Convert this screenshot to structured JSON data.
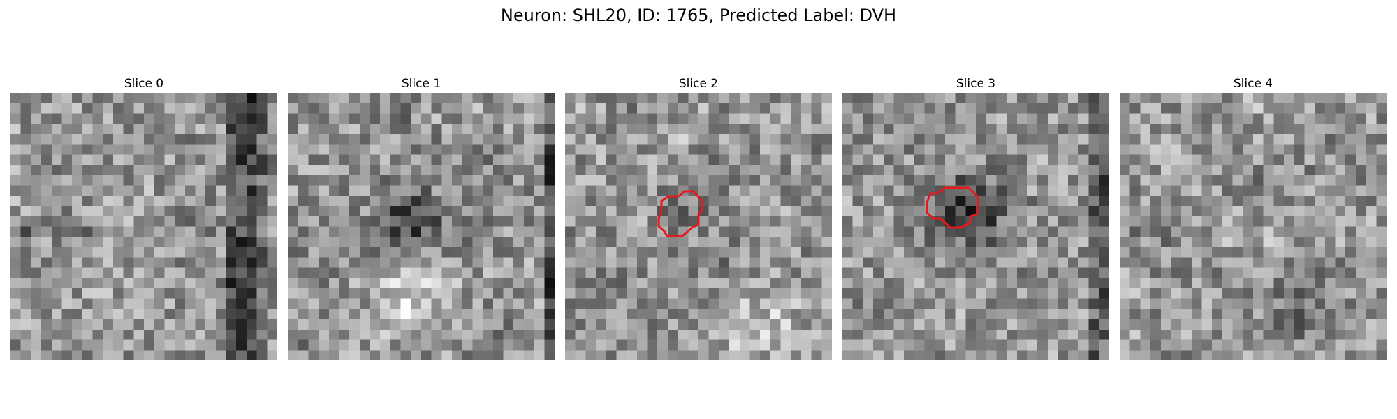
{
  "figure": {
    "title": "Neuron: SHL20, ID: 1765, Predicted Label: DVH"
  },
  "slices": [
    {
      "label": "Slice 0",
      "has_contour": false
    },
    {
      "label": "Slice 1",
      "has_contour": false
    },
    {
      "label": "Slice 2",
      "has_contour": true
    },
    {
      "label": "Slice 3",
      "has_contour": true
    },
    {
      "label": "Slice 4",
      "has_contour": false
    }
  ],
  "colors": {
    "contour": "#e8181c",
    "background": "#ffffff"
  },
  "colormap": "gray"
}
